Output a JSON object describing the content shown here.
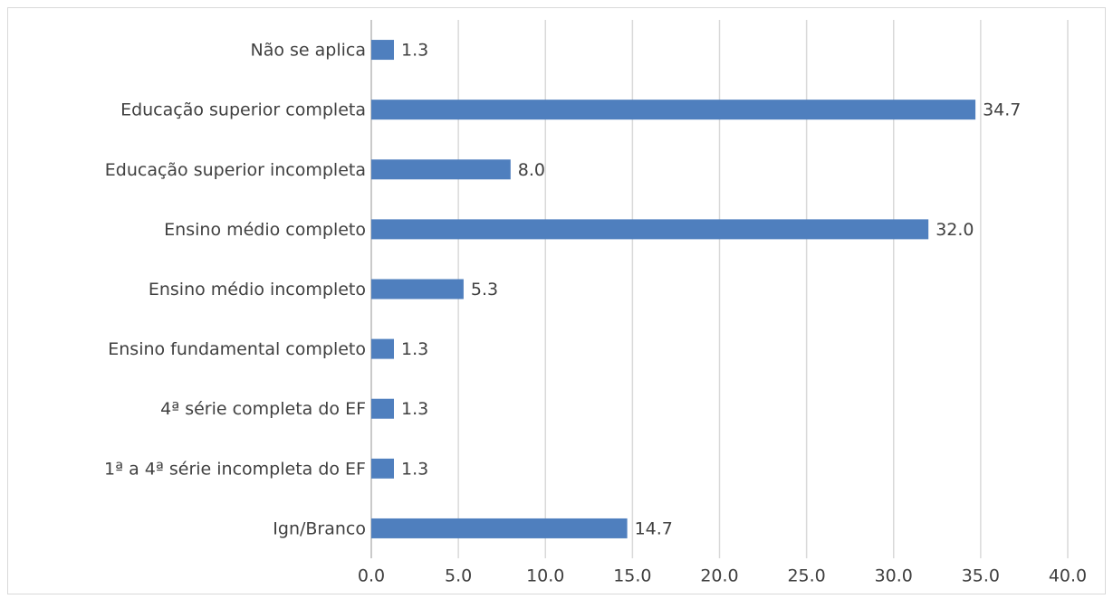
{
  "chart_data": {
    "type": "bar",
    "orientation": "horizontal",
    "categories": [
      "Não se aplica",
      "Educação superior completa",
      "Educação superior incompleta",
      "Ensino médio completo",
      "Ensino médio incompleto",
      "Ensino fundamental completo",
      "4ª série completa do EF",
      "1ª a 4ª série incompleta do EF",
      "Ign/Branco"
    ],
    "values": [
      1.3,
      34.7,
      8.0,
      32.0,
      5.3,
      1.3,
      1.3,
      1.3,
      14.7
    ],
    "value_labels": [
      "1.3",
      "34.7",
      "8.0",
      "32.0",
      "5.3",
      "1.3",
      "1.3",
      "1.3",
      "14.7"
    ],
    "color": "#4f7fbe",
    "xlim": [
      0,
      40
    ],
    "xticks": [
      {
        "value": 0,
        "label": "0.0"
      },
      {
        "value": 5,
        "label": "5.0"
      },
      {
        "value": 10,
        "label": "10.0"
      },
      {
        "value": 15,
        "label": "15.0"
      },
      {
        "value": 20,
        "label": "20.0"
      },
      {
        "value": 25,
        "label": "25.0"
      },
      {
        "value": 30,
        "label": "30.0"
      },
      {
        "value": 35,
        "label": "35.0"
      },
      {
        "value": 40,
        "label": "40.0"
      }
    ],
    "grid": true
  }
}
